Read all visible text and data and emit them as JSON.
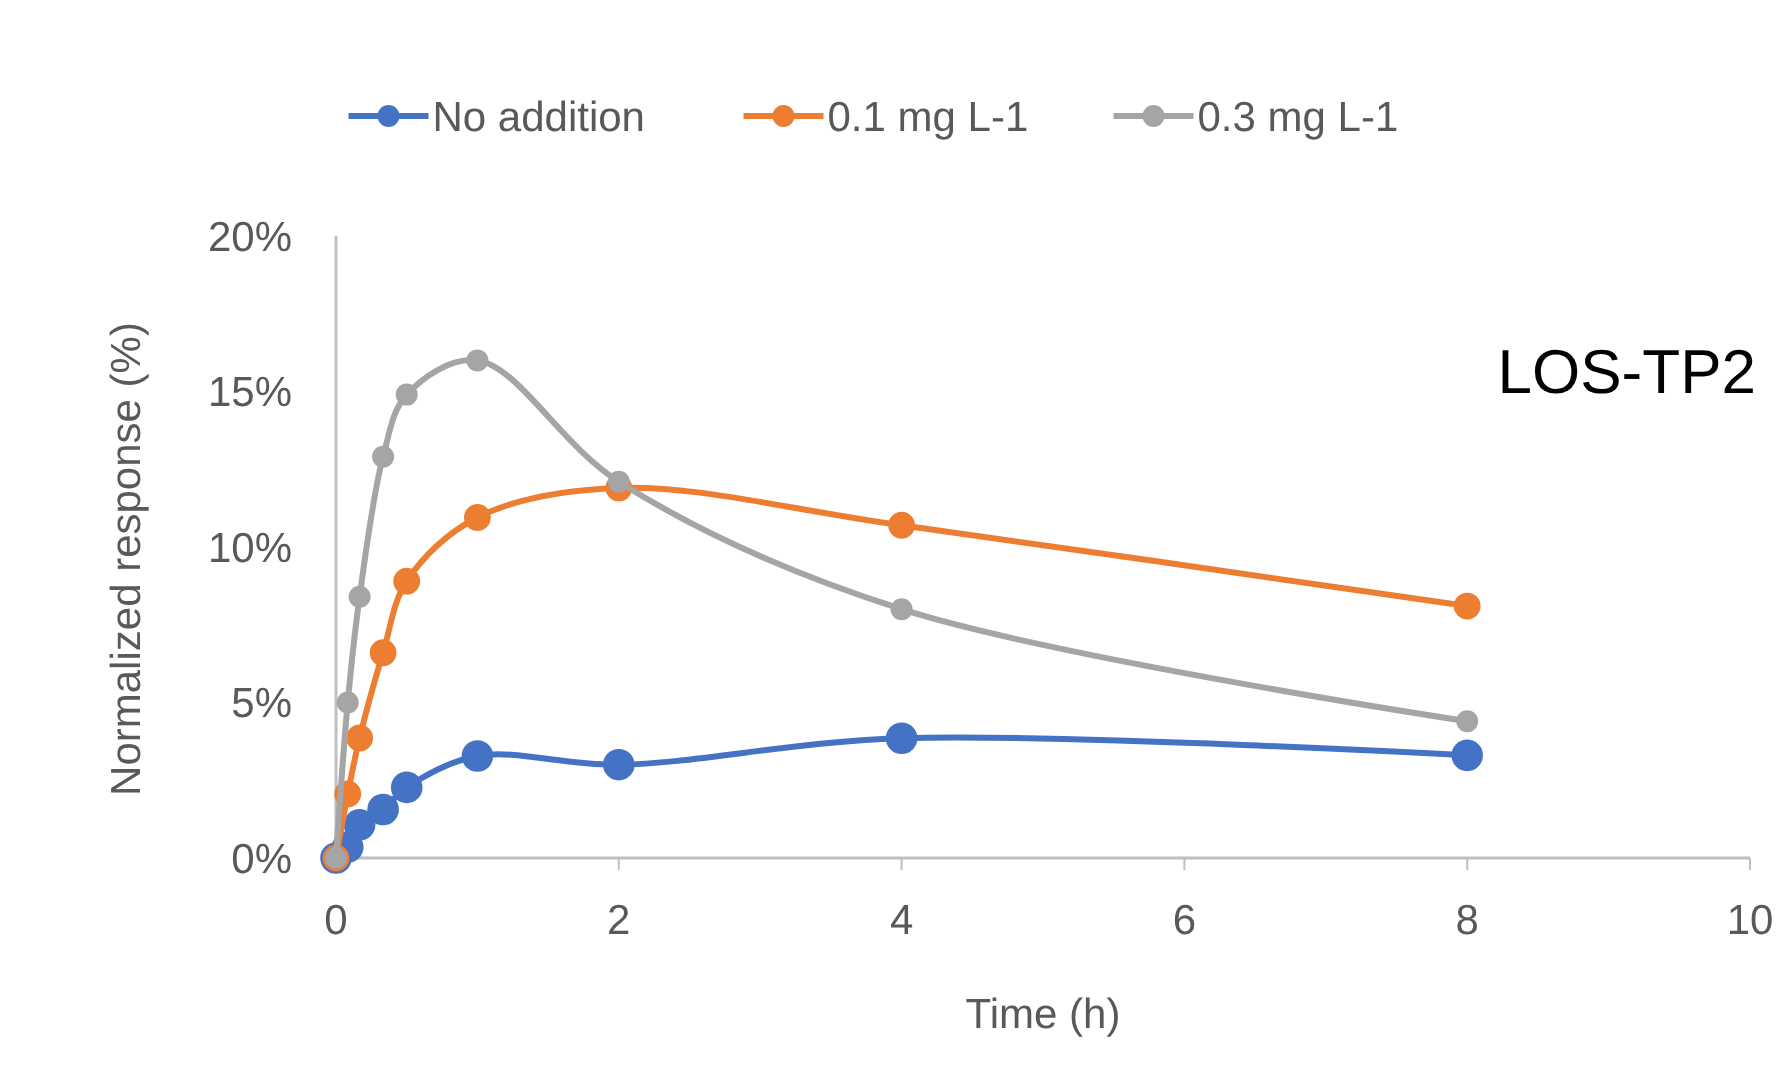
{
  "chart_data": {
    "type": "line",
    "xlabel": "Time (h)",
    "ylabel": "Normalized response (%)",
    "annotations": [
      "LOS-TP2"
    ],
    "x": [
      0,
      0.083,
      0.167,
      0.333,
      0.5,
      1,
      2,
      4,
      8
    ],
    "series": [
      {
        "name": "No addition",
        "color": "#4472c4",
        "values": [
          0,
          0.35,
          1.07,
          1.56,
          2.27,
          3.28,
          3.0,
          3.85,
          3.3
        ]
      },
      {
        "name": "0.1 mg L-1",
        "color": "#ed7d31",
        "values": [
          0,
          2.06,
          3.86,
          6.6,
          8.9,
          10.95,
          11.9,
          10.7,
          8.1
        ]
      },
      {
        "name": "0.3 mg L-1",
        "color": "#a5a5a5",
        "values": [
          0,
          5.0,
          8.4,
          12.9,
          14.9,
          16.0,
          12.1,
          8.0,
          4.4
        ]
      }
    ],
    "xlim": [
      0,
      10
    ],
    "xticks": [
      0,
      2,
      4,
      6,
      8,
      10
    ],
    "ylim": [
      0,
      20
    ],
    "yticks": [
      {
        "value": 0,
        "label": "0%"
      },
      {
        "value": 5,
        "label": "5%"
      },
      {
        "value": 10,
        "label": "10%"
      },
      {
        "value": 15,
        "label": "15%"
      },
      {
        "value": 20,
        "label": "20%"
      }
    ],
    "grid": false,
    "legend": "top",
    "marker": "circle",
    "line_style": "solid"
  }
}
